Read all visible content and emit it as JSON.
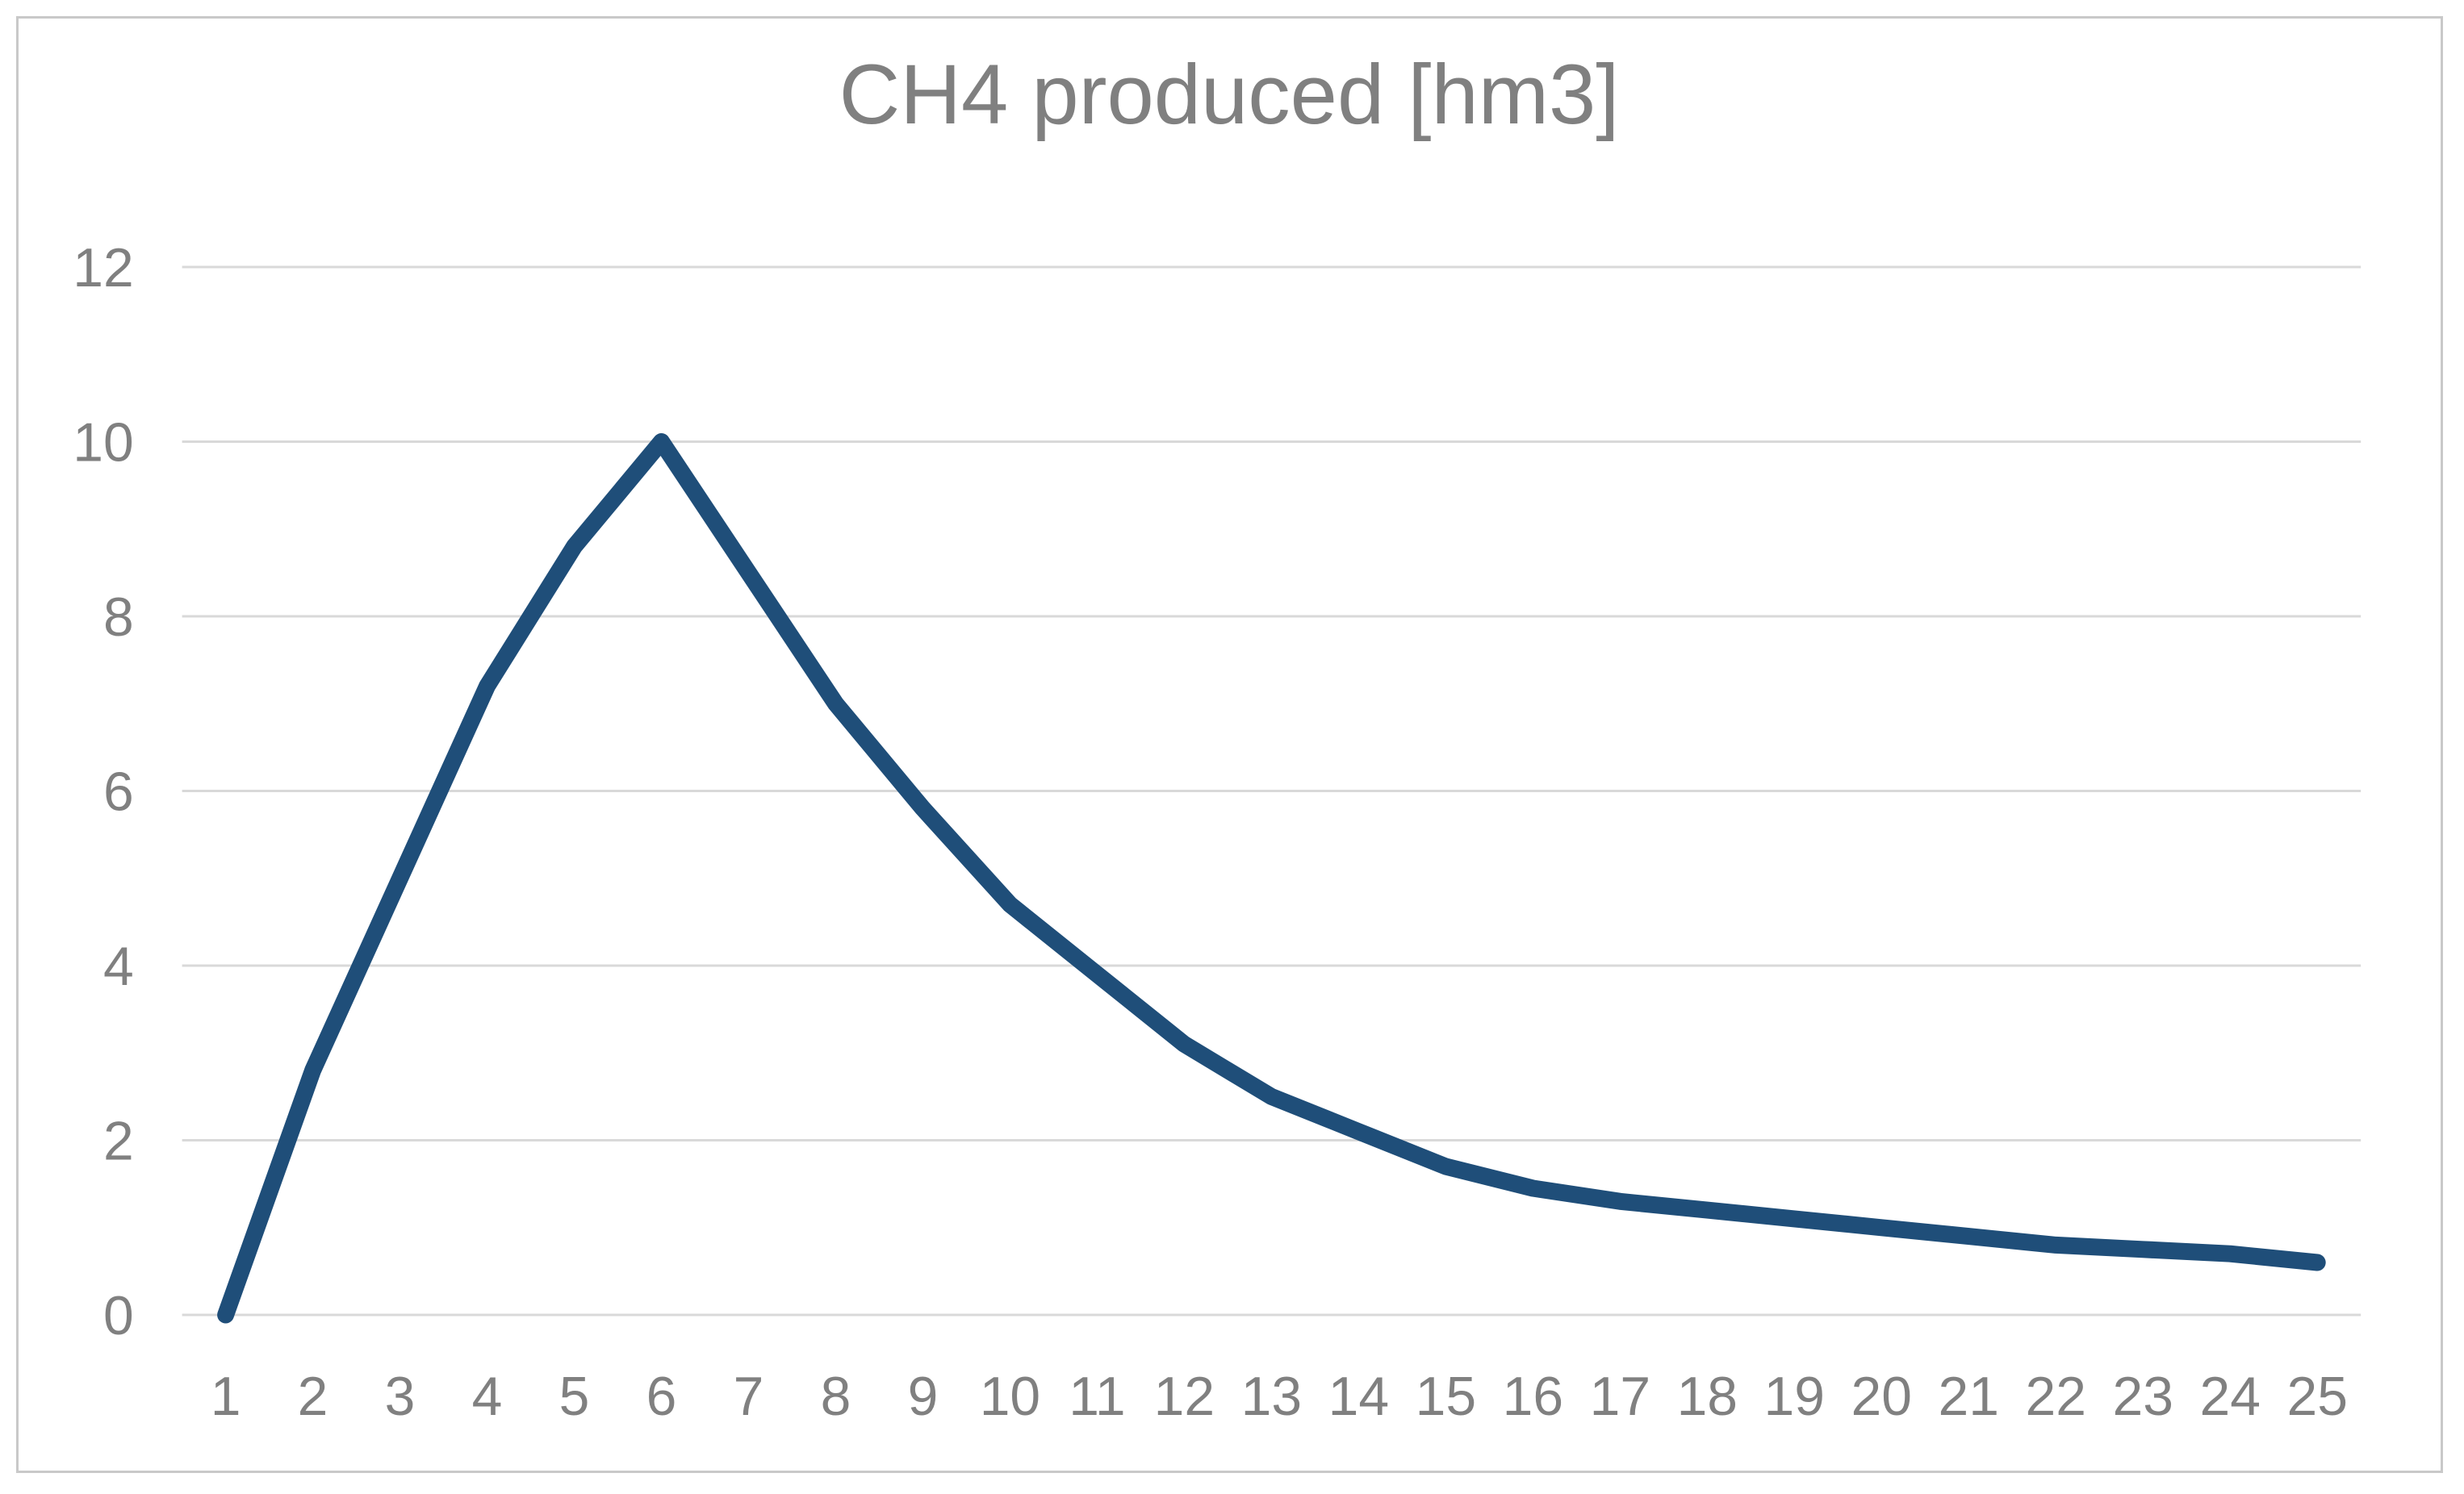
{
  "window": {
    "background_color": "#ffffff",
    "frame_border_color": "#c9c9c9"
  },
  "chart_data": {
    "type": "line",
    "title": "CH4 produced [hm3]",
    "title_color": "#808080",
    "categories": [
      "1",
      "2",
      "3",
      "4",
      "5",
      "6",
      "7",
      "8",
      "9",
      "10",
      "11",
      "12",
      "13",
      "14",
      "15",
      "16",
      "17",
      "18",
      "19",
      "20",
      "21",
      "22",
      "23",
      "24",
      "25"
    ],
    "series": [
      {
        "name": "CH4 produced [hm3]",
        "values": [
          0,
          2.8,
          5,
          7.2,
          8.8,
          10,
          8.5,
          7,
          5.8,
          4.7,
          3.9,
          3.1,
          2.5,
          2.1,
          1.7,
          1.45,
          1.3,
          1.2,
          1.1,
          1,
          0.9,
          0.8,
          0.75,
          0.7,
          0.6
        ],
        "color": "#1F4E79",
        "line_width": 21
      }
    ],
    "xlabel": "",
    "ylabel": "",
    "y_ticks": [
      0,
      2,
      4,
      6,
      8,
      10,
      12
    ],
    "ylim": [
      0,
      12
    ],
    "x_axis_padding_categories": 0.5,
    "grid": true,
    "gridline_color": "#d9d9d9",
    "axis_label_color": "#808080",
    "legend_position": "none"
  }
}
